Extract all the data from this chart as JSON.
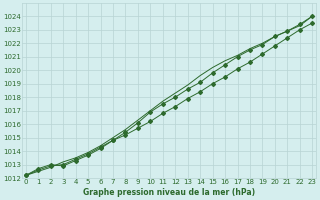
{
  "x": [
    0,
    1,
    2,
    3,
    4,
    5,
    6,
    7,
    8,
    9,
    10,
    11,
    12,
    13,
    14,
    15,
    16,
    17,
    18,
    19,
    20,
    21,
    22,
    23
  ],
  "series1": [
    1012.2,
    1012.6,
    1012.9,
    1013.0,
    1013.4,
    1013.8,
    1014.3,
    1014.8,
    1015.2,
    1015.7,
    1016.2,
    1016.8,
    1017.3,
    1017.9,
    1018.4,
    1019.0,
    1019.5,
    1020.1,
    1020.6,
    1021.2,
    1021.8,
    1022.4,
    1023.0,
    1023.5
  ],
  "series2": [
    1012.2,
    1012.7,
    1013.0,
    1012.9,
    1013.3,
    1013.7,
    1014.2,
    1014.8,
    1015.4,
    1016.1,
    1016.9,
    1017.5,
    1018.0,
    1018.6,
    1019.1,
    1019.8,
    1020.4,
    1021.0,
    1021.5,
    1021.9,
    1022.5,
    1022.9,
    1023.4,
    1024.0
  ],
  "series3": [
    1012.2,
    1012.5,
    1012.8,
    1013.2,
    1013.5,
    1013.9,
    1014.4,
    1015.0,
    1015.6,
    1016.3,
    1017.0,
    1017.7,
    1018.3,
    1018.9,
    1019.6,
    1020.2,
    1020.7,
    1021.1,
    1021.6,
    1022.0,
    1022.5,
    1022.9,
    1023.3,
    1024.0
  ],
  "line_color": "#2d6a2d",
  "bg_color": "#d5eeee",
  "grid_color": "#b8d4d4",
  "tick_label_color": "#2d6a2d",
  "xlabel": "Graphe pression niveau de la mer (hPa)",
  "ylim_min": 1012,
  "ylim_max": 1025,
  "yticks": [
    1012,
    1013,
    1014,
    1015,
    1016,
    1017,
    1018,
    1019,
    1020,
    1021,
    1022,
    1023,
    1024
  ],
  "xticks": [
    0,
    1,
    2,
    3,
    4,
    5,
    6,
    7,
    8,
    9,
    10,
    11,
    12,
    13,
    14,
    15,
    16,
    17,
    18,
    19,
    20,
    21,
    22,
    23
  ]
}
